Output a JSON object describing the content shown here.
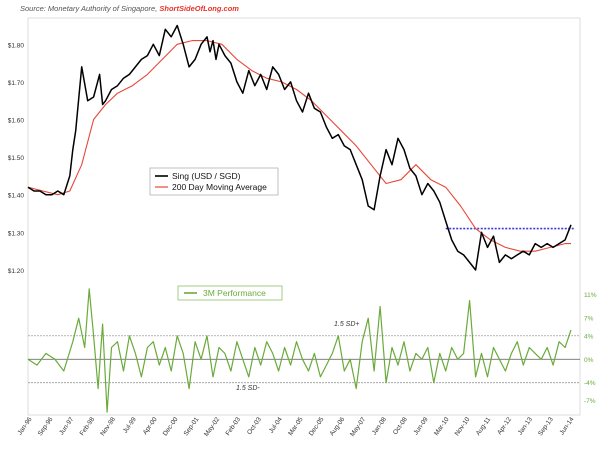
{
  "source": {
    "prefix": "Source: Monetary Authority of Singapore, ",
    "brand": "ShortSideOfLong.com"
  },
  "colors": {
    "price": "#000000",
    "ma": "#e8473a",
    "perf": "#6aaa3a",
    "resistance": "#3a3ad8",
    "sd_lines": "#888888"
  },
  "chart_data": [
    {
      "type": "line",
      "panel": "top",
      "y_tick_labels": [
        "$1.20",
        "$1.30",
        "$1.40",
        "$1.50",
        "$1.60",
        "$1.70",
        "$1.80"
      ],
      "y_ticks": [
        1.2,
        1.3,
        1.4,
        1.5,
        1.6,
        1.7,
        1.8
      ],
      "ylim": [
        1.16,
        1.87
      ],
      "xlim": [
        0,
        18.5
      ],
      "legend": {
        "entries": [
          "Sing (USD / SGD)",
          "200 Day Moving Average"
        ],
        "placement": "center-left"
      },
      "annotations": [
        {
          "type": "horizontal_dotted_line",
          "label": "",
          "y": 1.31,
          "x_start": 14.0,
          "x_end": 18.3,
          "color": "#3a3ad8"
        }
      ],
      "series": [
        {
          "name": "Sing (USD / SGD)",
          "color": "#000000",
          "x": [
            0,
            0.2,
            0.4,
            0.6,
            0.8,
            1.0,
            1.2,
            1.4,
            1.5,
            1.6,
            1.8,
            2.0,
            2.2,
            2.4,
            2.5,
            2.6,
            2.8,
            3.0,
            3.2,
            3.4,
            3.6,
            3.8,
            4.0,
            4.2,
            4.4,
            4.6,
            4.8,
            5.0,
            5.2,
            5.4,
            5.6,
            5.8,
            6.0,
            6.1,
            6.2,
            6.3,
            6.4,
            6.6,
            6.8,
            7.0,
            7.2,
            7.4,
            7.6,
            7.8,
            8.0,
            8.2,
            8.4,
            8.6,
            8.8,
            9.0,
            9.2,
            9.4,
            9.6,
            9.8,
            10.0,
            10.2,
            10.4,
            10.6,
            10.8,
            11.0,
            11.2,
            11.4,
            11.6,
            11.8,
            12.0,
            12.2,
            12.4,
            12.6,
            12.8,
            13.0,
            13.2,
            13.4,
            13.6,
            13.8,
            14.0,
            14.2,
            14.4,
            14.6,
            14.8,
            15.0,
            15.2,
            15.4,
            15.6,
            15.8,
            16.0,
            16.2,
            16.4,
            16.6,
            16.8,
            17.0,
            17.2,
            17.4,
            17.6,
            17.8,
            18.0,
            18.2
          ],
          "values": [
            1.42,
            1.41,
            1.41,
            1.4,
            1.4,
            1.41,
            1.4,
            1.45,
            1.52,
            1.57,
            1.74,
            1.65,
            1.66,
            1.72,
            1.64,
            1.65,
            1.68,
            1.69,
            1.71,
            1.72,
            1.74,
            1.76,
            1.77,
            1.8,
            1.77,
            1.84,
            1.82,
            1.85,
            1.8,
            1.74,
            1.76,
            1.8,
            1.82,
            1.78,
            1.81,
            1.76,
            1.8,
            1.77,
            1.75,
            1.7,
            1.67,
            1.73,
            1.69,
            1.72,
            1.68,
            1.74,
            1.72,
            1.68,
            1.7,
            1.65,
            1.62,
            1.67,
            1.63,
            1.62,
            1.58,
            1.55,
            1.56,
            1.53,
            1.52,
            1.48,
            1.44,
            1.37,
            1.36,
            1.45,
            1.52,
            1.48,
            1.55,
            1.52,
            1.47,
            1.45,
            1.4,
            1.43,
            1.41,
            1.38,
            1.33,
            1.28,
            1.25,
            1.24,
            1.22,
            1.2,
            1.3,
            1.26,
            1.29,
            1.22,
            1.24,
            1.23,
            1.24,
            1.25,
            1.24,
            1.27,
            1.26,
            1.27,
            1.26,
            1.27,
            1.28,
            1.32
          ]
        },
        {
          "name": "200 Day Moving Average",
          "color": "#e8473a",
          "x": [
            0,
            0.5,
            1.0,
            1.4,
            1.8,
            2.2,
            2.6,
            3.0,
            3.5,
            4.0,
            4.5,
            5.0,
            5.5,
            6.0,
            6.5,
            7.0,
            7.5,
            8.0,
            8.5,
            9.0,
            9.5,
            10.0,
            10.5,
            11.0,
            11.5,
            12.0,
            12.5,
            13.0,
            13.5,
            14.0,
            14.5,
            15.0,
            15.5,
            16.0,
            16.5,
            17.0,
            17.5,
            18.0,
            18.2
          ],
          "values": [
            1.42,
            1.41,
            1.4,
            1.41,
            1.48,
            1.6,
            1.64,
            1.67,
            1.69,
            1.72,
            1.76,
            1.8,
            1.81,
            1.81,
            1.8,
            1.76,
            1.73,
            1.71,
            1.7,
            1.68,
            1.65,
            1.61,
            1.57,
            1.53,
            1.48,
            1.43,
            1.44,
            1.48,
            1.44,
            1.42,
            1.37,
            1.31,
            1.28,
            1.26,
            1.25,
            1.25,
            1.26,
            1.27,
            1.27
          ]
        }
      ]
    },
    {
      "type": "line",
      "panel": "bottom",
      "y_tick_labels": [
        "11%",
        "7%",
        "4%",
        "0%",
        "-4%",
        "-7%"
      ],
      "y_ticks": [
        11,
        7,
        4,
        0,
        -4,
        -7
      ],
      "ylim": [
        -9.5,
        13
      ],
      "xlim": [
        0,
        18.5
      ],
      "legend": {
        "entries": [
          "3M Performance"
        ],
        "placement": "top-center"
      },
      "annotations": [
        {
          "type": "horizontal_line",
          "label": "1.5 SD+",
          "y": 4
        },
        {
          "type": "horizontal_line",
          "label": "",
          "y": 0
        },
        {
          "type": "horizontal_line",
          "label": "1.5 SD-",
          "y": -4
        }
      ],
      "series": [
        {
          "name": "3M Performance",
          "color": "#6aaa3a",
          "x": [
            0,
            0.3,
            0.6,
            0.9,
            1.2,
            1.5,
            1.7,
            1.9,
            2.05,
            2.2,
            2.35,
            2.5,
            2.65,
            2.8,
            3.0,
            3.2,
            3.4,
            3.6,
            3.8,
            4.0,
            4.2,
            4.4,
            4.6,
            4.8,
            5.0,
            5.2,
            5.4,
            5.6,
            5.8,
            6.0,
            6.2,
            6.4,
            6.6,
            6.8,
            7.0,
            7.2,
            7.4,
            7.6,
            7.8,
            8.0,
            8.2,
            8.4,
            8.6,
            8.8,
            9.0,
            9.2,
            9.4,
            9.6,
            9.8,
            10.0,
            10.2,
            10.4,
            10.6,
            10.8,
            11.0,
            11.2,
            11.4,
            11.6,
            11.8,
            12.0,
            12.2,
            12.4,
            12.6,
            12.8,
            13.0,
            13.2,
            13.4,
            13.6,
            13.8,
            14.0,
            14.2,
            14.4,
            14.6,
            14.8,
            15.0,
            15.2,
            15.4,
            15.6,
            15.8,
            16.0,
            16.2,
            16.4,
            16.6,
            16.8,
            17.0,
            17.2,
            17.4,
            17.6,
            17.8,
            18.0,
            18.2
          ],
          "values": [
            0,
            -1,
            1,
            0,
            -2,
            3,
            7,
            2,
            12,
            4,
            -5,
            6,
            -9,
            2,
            3,
            -2,
            4,
            1,
            -3,
            2,
            3,
            -1,
            2,
            -2,
            4,
            1,
            -5,
            3,
            0,
            4,
            -3,
            2,
            1,
            -2,
            3,
            0,
            -3,
            2,
            -1,
            3,
            1,
            -2,
            2,
            -1,
            3,
            0,
            -2,
            1,
            -3,
            -1,
            1,
            4,
            -2,
            0,
            -5,
            3,
            7,
            -2,
            9,
            -4,
            2,
            -1,
            3,
            -2,
            1,
            0,
            2,
            -4,
            1,
            -2,
            2,
            0,
            1,
            10,
            -3,
            1,
            -3,
            2,
            0,
            -2,
            1,
            3,
            -1,
            2,
            1,
            0,
            2,
            -1,
            3,
            2,
            5
          ]
        }
      ]
    }
  ],
  "x_axis": {
    "labels": [
      "Jan-96",
      "Sep-96",
      "Jun-97",
      "Feb-98",
      "Nov-98",
      "Jul-99",
      "Apr-00",
      "Dec-00",
      "Sep-01",
      "May-02",
      "Feb-03",
      "Oct-03",
      "Jul-04",
      "Mar-05",
      "Dec-05",
      "Aug-06",
      "May-07",
      "Jan-08",
      "Oct-08",
      "Jun-09",
      "Mar-10",
      "Nov-10",
      "Aug-11",
      "Apr-12",
      "Jan-13",
      "Sep-13",
      "Jun-14"
    ]
  }
}
